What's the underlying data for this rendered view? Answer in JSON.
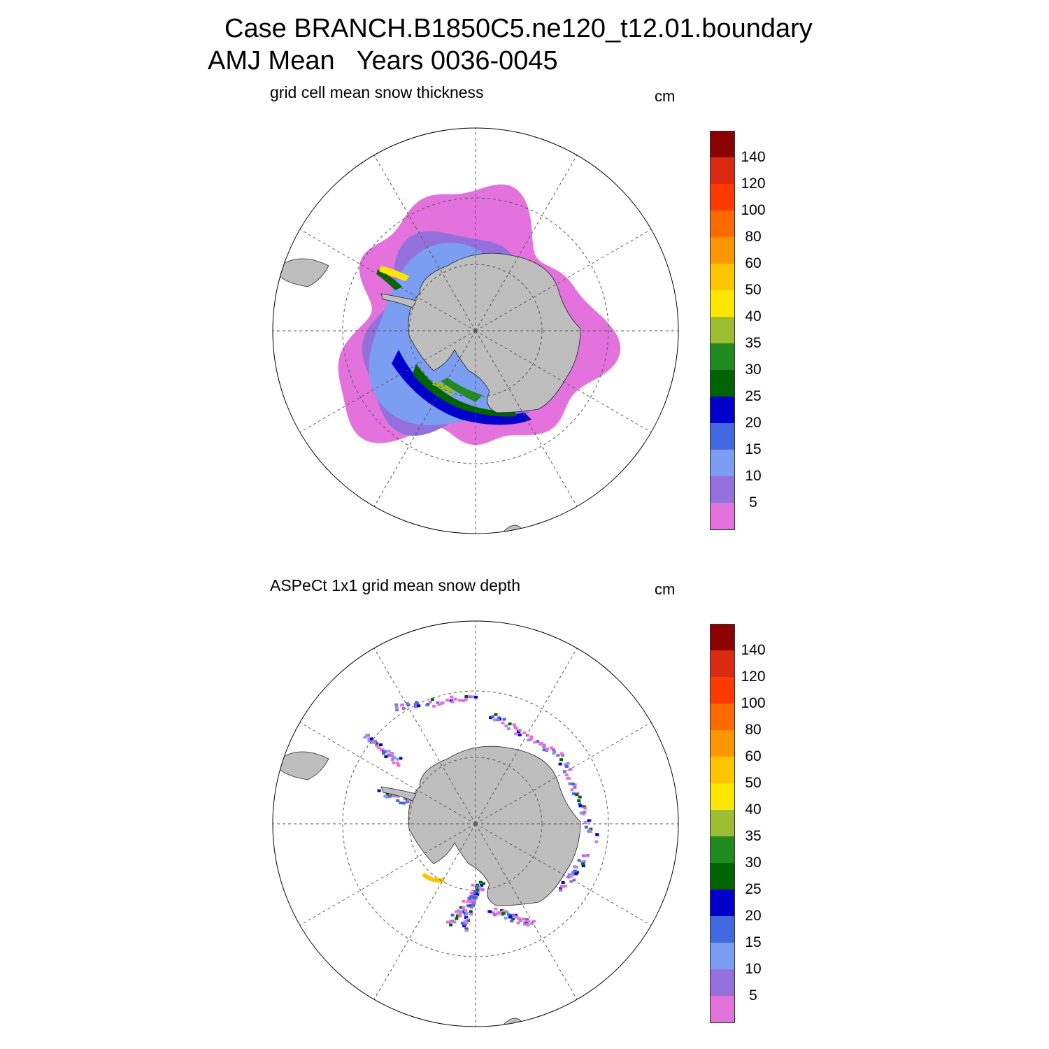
{
  "title": {
    "line1": "Case BRANCH.B1850C5.ne120_t12.01.boundary",
    "line2": "AMJ Mean   Years 0036-0045"
  },
  "panels": [
    {
      "subtitle": "grid cell mean snow thickness",
      "units": "cm",
      "variant": "model"
    },
    {
      "subtitle": "ASPeCt 1x1 grid mean snow depth",
      "units": "cm",
      "variant": "obs"
    }
  ],
  "colorbar": {
    "labels": [
      "140",
      "120",
      "100",
      "80",
      "60",
      "50",
      "40",
      "35",
      "30",
      "25",
      "20",
      "15",
      "10",
      "5"
    ],
    "colors": [
      "#8b0000",
      "#dc2a12",
      "#ff3a00",
      "#ff6a00",
      "#ff9600",
      "#ffc400",
      "#ffe600",
      "#9cbd32",
      "#218a21",
      "#006400",
      "#0000cd",
      "#4169e1",
      "#7b9df2",
      "#9370db",
      "#e472dc"
    ]
  },
  "colors": {
    "land": "#bebebe",
    "grid": "#555555"
  }
}
